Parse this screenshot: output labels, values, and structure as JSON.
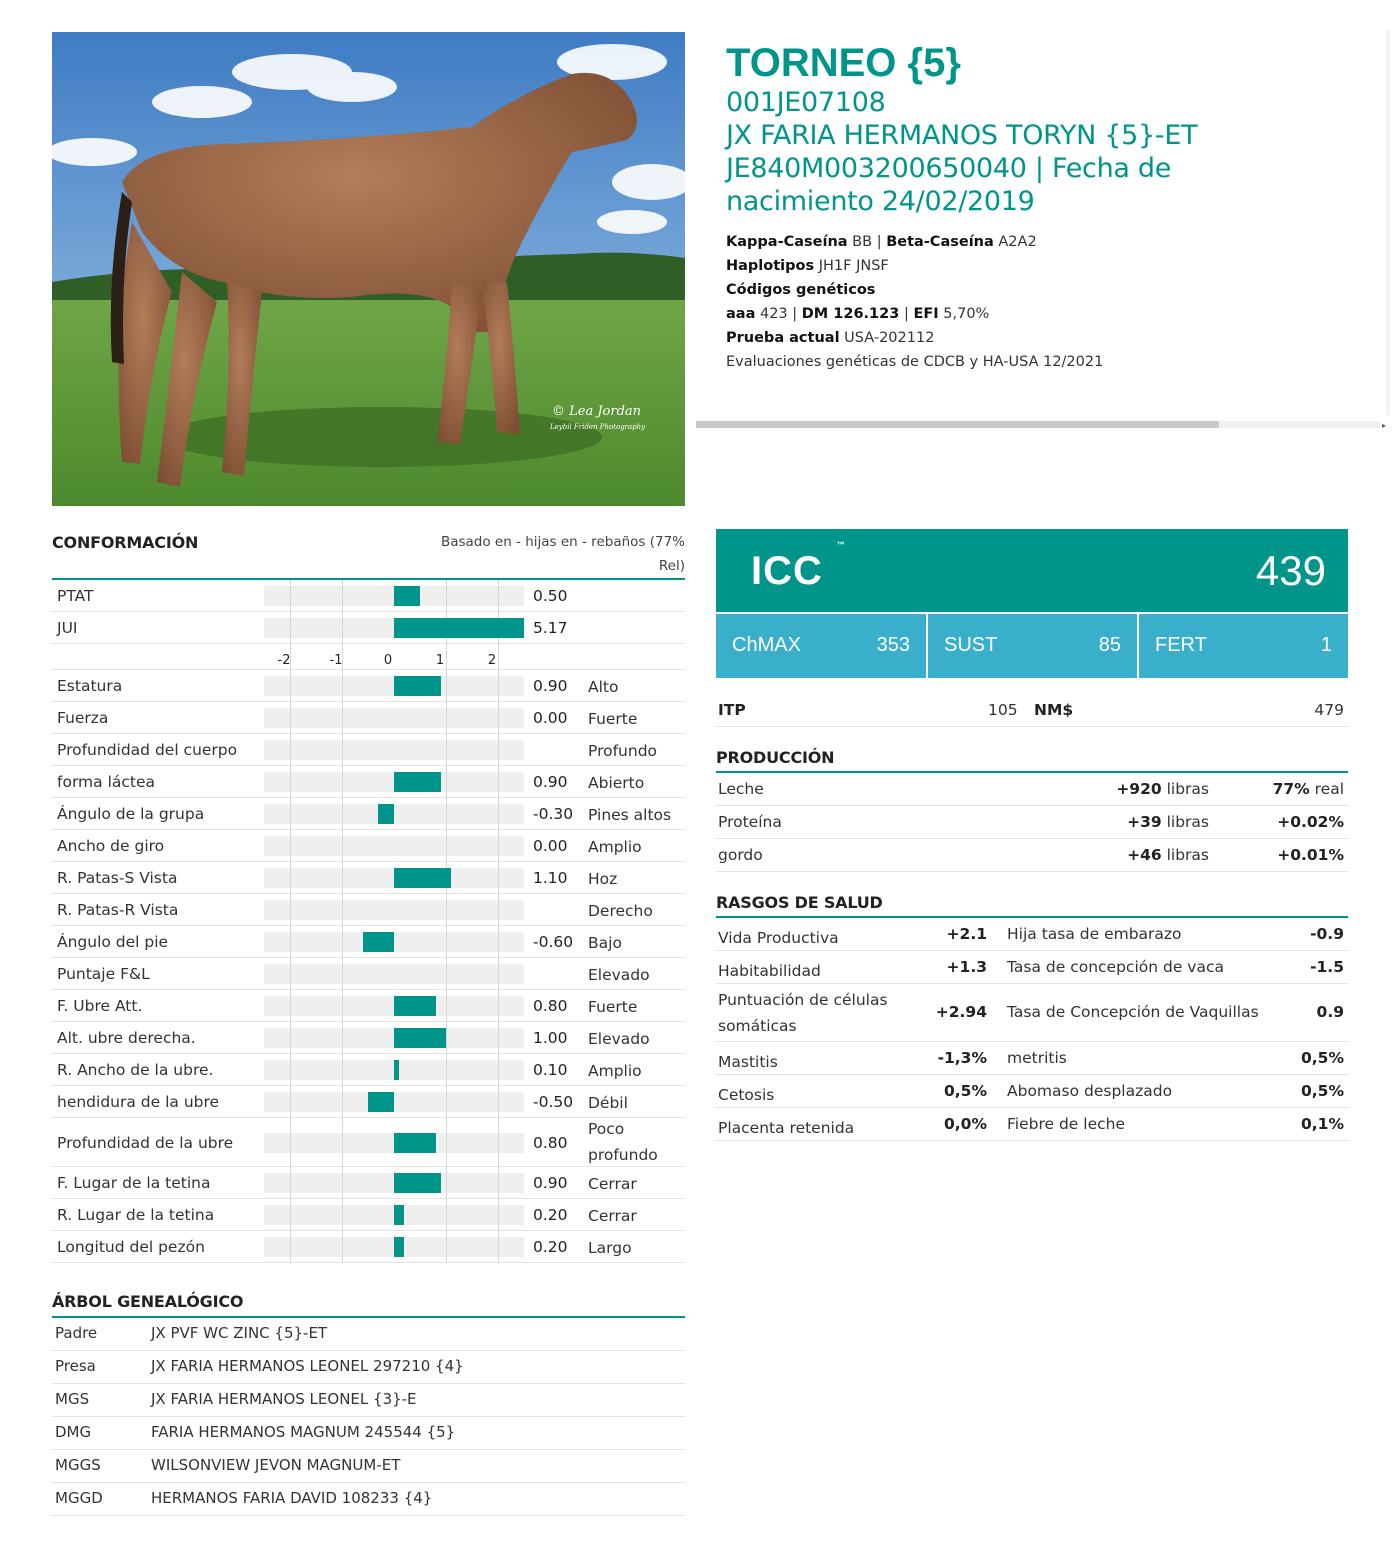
{
  "photo": {
    "watermark_line1": "© Lea Jordan",
    "watermark_line2": "Leybil Friden Photography"
  },
  "header": {
    "name": "TORNEO {5}",
    "code": "001JE07108",
    "full_name": "JX FARIA HERMANOS TORYN {5}-ET",
    "reg_line1": "JE840M003200650040 | Fecha de",
    "reg_line2": "nacimiento 24/02/2019",
    "kappa_label": "Kappa-Caseína",
    "kappa_value": "BB",
    "beta_label": "Beta-Caseína",
    "beta_value": "A2A2",
    "haplo_label": "Haplotipos",
    "haplo_value": "JH1F JNSF",
    "codes_label": "Códigos genéticos",
    "aaa_label": "aaa",
    "aaa_value": "423",
    "dm_label": "DM 126.123",
    "efi_label": "EFI",
    "efi_value": "5,70%",
    "test_label": "Prueba actual",
    "test_value": "USA-202112",
    "eval_note": "Evaluaciones genéticas de CDCB y HA-USA 12/2021",
    "sep": "|"
  },
  "conformation": {
    "title": "CONFORMACIÓN",
    "basis_line1": "Basado en - hijas en - rebaños (77%",
    "basis_line2": "Rel)",
    "axis_ticks": [
      "-2",
      "-1",
      "0",
      "1",
      "2"
    ],
    "summary": [
      {
        "label": "PTAT",
        "value": 0.5,
        "value_text": "0.50"
      },
      {
        "label": "JUI",
        "value": 5.17,
        "value_text": "5.17"
      }
    ],
    "traits": [
      {
        "label": "Estatura",
        "value": 0.9,
        "value_text": "0.90",
        "desc": "Alto"
      },
      {
        "label": "Fuerza",
        "value": 0.0,
        "value_text": "0.00",
        "desc": "Fuerte"
      },
      {
        "label": "Profundidad del cuerpo",
        "value": 0,
        "value_text": "",
        "desc": "Profundo"
      },
      {
        "label": "forma láctea",
        "value": 0.9,
        "value_text": "0.90",
        "desc": "Abierto"
      },
      {
        "label": "Ángulo de la grupa",
        "value": -0.3,
        "value_text": "-0.30",
        "desc": "Pines altos"
      },
      {
        "label": "Ancho de giro",
        "value": 0.0,
        "value_text": "0.00",
        "desc": "Amplio"
      },
      {
        "label": "R. Patas-S Vista",
        "value": 1.1,
        "value_text": "1.10",
        "desc": "Hoz"
      },
      {
        "label": "R. Patas-R Vista",
        "value": 0,
        "value_text": "",
        "desc": "Derecho"
      },
      {
        "label": "Ángulo del pie",
        "value": -0.6,
        "value_text": "-0.60",
        "desc": "Bajo"
      },
      {
        "label": "Puntaje F&L",
        "value": 0,
        "value_text": "",
        "desc": "Elevado"
      },
      {
        "label": "F. Ubre Att.",
        "value": 0.8,
        "value_text": "0.80",
        "desc": "Fuerte"
      },
      {
        "label": "Alt. ubre derecha.",
        "value": 1.0,
        "value_text": "1.00",
        "desc": "Elevado"
      },
      {
        "label": "R. Ancho de la ubre.",
        "value": 0.1,
        "value_text": "0.10",
        "desc": "Amplio"
      },
      {
        "label": "hendidura de la ubre",
        "value": -0.5,
        "value_text": "-0.50",
        "desc": "Débil"
      },
      {
        "label": "Profundidad de la ubre",
        "value": 0.8,
        "value_text": "0.80",
        "desc": "Poco profundo",
        "tall": true
      },
      {
        "label": "F. Lugar de la tetina",
        "value": 0.9,
        "value_text": "0.90",
        "desc": "Cerrar"
      },
      {
        "label": "R. Lugar de la tetina",
        "value": 0.2,
        "value_text": "0.20",
        "desc": "Cerrar"
      },
      {
        "label": "Longitud del pezón",
        "value": 0.2,
        "value_text": "0.20",
        "desc": "Largo"
      }
    ]
  },
  "pedigree": {
    "title": "ÁRBOL GENEALÓGICO",
    "rows": [
      {
        "key": "Padre",
        "value": "JX PVF WC ZINC {5}-ET"
      },
      {
        "key": "Presa",
        "value": "JX FARIA HERMANOS LEONEL 297210 {4}"
      },
      {
        "key": "MGS",
        "value": "JX FARIA HERMANOS LEONEL {3}-E"
      },
      {
        "key": "DMG",
        "value": "FARIA HERMANOS MAGNUM 245544 {5}"
      },
      {
        "key": "MGGS",
        "value": "WILSONVIEW JEVON MAGNUM-ET"
      },
      {
        "key": "MGGD",
        "value": "HERMANOS FARIA DAVID 108233 {4}"
      }
    ]
  },
  "indexes": {
    "icc_label": "ICC",
    "icc_tm": "™",
    "icc_value": "439",
    "sub": [
      {
        "name": "ChMAX",
        "value": "353"
      },
      {
        "name": "SUST",
        "value": "85"
      },
      {
        "name": "FERT",
        "value": "1"
      }
    ],
    "itp_label": "ITP",
    "itp_value": "105",
    "nm_label": "NM$",
    "nm_value": "479"
  },
  "production": {
    "title": "PRODUCCIÓN",
    "rows": [
      {
        "label": "Leche",
        "num": "+920",
        "unit": "libras",
        "extra_b": "77%",
        "extra": "real"
      },
      {
        "label": "Proteína",
        "num": "+39",
        "unit": "libras",
        "extra_b": "+0.02%",
        "extra": ""
      },
      {
        "label": "gordo",
        "num": "+46",
        "unit": "libras",
        "extra_b": "+0.01%",
        "extra": ""
      }
    ]
  },
  "health": {
    "title": "RASGOS DE SALUD",
    "rows": [
      {
        "l1": "Vida Productiva",
        "v1": "+2.1",
        "l2": "Hija tasa de embarazo",
        "v2": "-0.9"
      },
      {
        "l1": "Habitabilidad",
        "v1": "+1.3",
        "l2": "Tasa de concepción de vaca",
        "v2": "-1.5"
      },
      {
        "l1": "Puntuación de células somáticas",
        "v1": "+2.94",
        "l2": "Tasa de Concepción de Vaquillas",
        "v2": "0.9",
        "tall": true
      },
      {
        "l1": "Mastitis",
        "v1": "-1,3%",
        "l2": "metritis",
        "v2": "0,5%"
      },
      {
        "l1": "Cetosis",
        "v1": "0,5%",
        "l2": "Abomaso desplazado",
        "v2": "0,5%"
      },
      {
        "l1": "Placenta retenida",
        "v1": "0,0%",
        "l2": "Fiebre de leche",
        "v2": "0,1%"
      }
    ]
  },
  "colors": {
    "accent": "#00958a",
    "sub_index": "#3aafcb"
  }
}
